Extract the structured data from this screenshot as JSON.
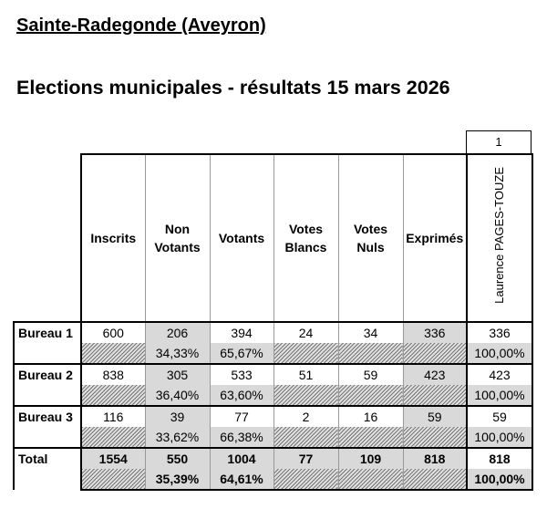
{
  "title": "Sainte-Radegonde (Aveyron)",
  "subtitle": "Elections municipales - résultats 15 mars 2026",
  "candidate_number": "1",
  "headers": [
    "Inscrits",
    "Non Votants",
    "Votants",
    "Votes Blancs",
    "Votes Nuls",
    "Exprimés"
  ],
  "header_lines": {
    "non": [
      "Non",
      "Votants"
    ],
    "blancs": [
      "Votes",
      "Blancs"
    ],
    "nuls": [
      "Votes",
      "Nuls"
    ]
  },
  "candidate": "Laurence PAGES-TOUZE",
  "rows": [
    {
      "label": "Bureau 1",
      "inscrits": "600",
      "non_votants": "206",
      "votants": "394",
      "blancs": "24",
      "nuls": "34",
      "exprimes": "336",
      "candidate": "336",
      "non_pct": "34,33%",
      "votants_pct": "65,67%",
      "candidate_pct": "100,00%"
    },
    {
      "label": "Bureau 2",
      "inscrits": "838",
      "non_votants": "305",
      "votants": "533",
      "blancs": "51",
      "nuls": "59",
      "exprimes": "423",
      "candidate": "423",
      "non_pct": "36,40%",
      "votants_pct": "63,60%",
      "candidate_pct": "100,00%"
    },
    {
      "label": "Bureau 3",
      "inscrits": "116",
      "non_votants": "39",
      "votants": "77",
      "blancs": "2",
      "nuls": "16",
      "exprimes": "59",
      "candidate": "59",
      "non_pct": "33,62%",
      "votants_pct": "66,38%",
      "candidate_pct": "100,00%"
    },
    {
      "label": "Total",
      "inscrits": "1554",
      "non_votants": "550",
      "votants": "1004",
      "blancs": "77",
      "nuls": "109",
      "exprimes": "818",
      "candidate": "818",
      "non_pct": "35,39%",
      "votants_pct": "64,61%",
      "candidate_pct": "100,00%"
    }
  ]
}
